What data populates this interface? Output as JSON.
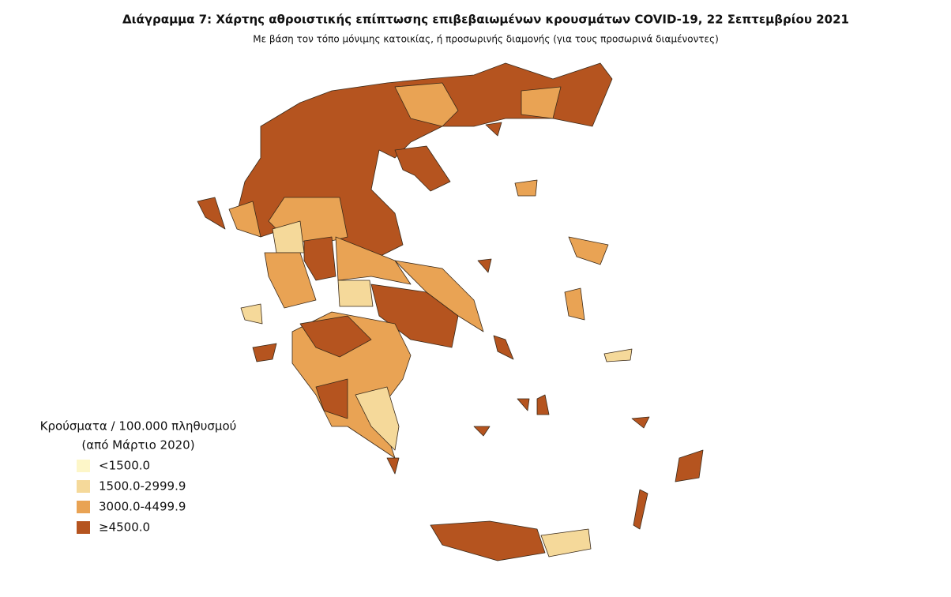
{
  "title": "Διάγραμμα 7: Χάρτης αθροιστικής επίπτωσης επιβεβαιωμένων κρουσμάτων COVID-19, 22 Σεπτεμβρίου 2021",
  "subtitle": "Με βάση τον τόπο μόνιμης κατοικίας, ή προσωρινής διαμονής (για τους προσωρινά διαμένοντες)",
  "legend": {
    "title": [
      "Κρούσματα / 100.000 πληθυσμού",
      "(από Μάρτιο 2020)"
    ],
    "items": [
      {
        "label": "<1500.0",
        "color": "#fdf6c8"
      },
      {
        "label": "1500.0-2999.9",
        "color": "#f5d99a"
      },
      {
        "label": "3000.0-4499.9",
        "color": "#e9a354"
      },
      {
        "label": "≥4500.0",
        "color": "#b5541f"
      }
    ]
  }
}
